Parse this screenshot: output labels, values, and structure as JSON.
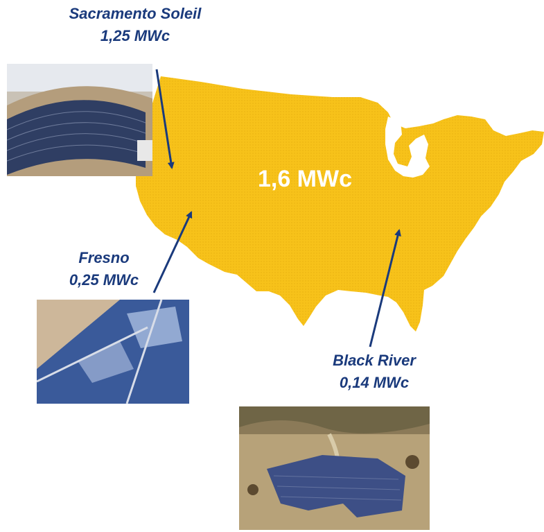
{
  "map": {
    "fill_color": "#f7c21a",
    "total_label": "1,6 MWc"
  },
  "sites": [
    {
      "name": "Sacramento Soleil",
      "capacity": "1,25 MWc"
    },
    {
      "name": "Fresno",
      "capacity": "0,25 MWc"
    },
    {
      "name": "Black River",
      "capacity": "0,14 MWc"
    }
  ],
  "colors": {
    "label": "#1a3a7c",
    "arrow": "#1a3a7c",
    "map": "#f7c21a"
  }
}
